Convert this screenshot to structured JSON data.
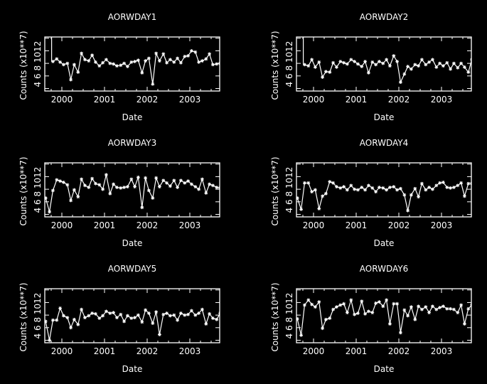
{
  "colors": {
    "background": "#000000",
    "foreground": "#ffffff"
  },
  "chart_data": [
    {
      "type": "line",
      "title": "AORWDAY1",
      "xlabel": "Date",
      "ylabel": "Counts (x10**7)",
      "xlim": [
        1999.6,
        2003.7
      ],
      "ylim": [
        3.6,
        12.2
      ],
      "xticks": [
        2000,
        2001,
        2002,
        2003
      ],
      "xtick_labels": [
        "2000",
        "2001",
        "2002",
        "2003"
      ],
      "yticks": [
        4,
        6,
        8,
        10,
        12
      ],
      "ytick_labels": [
        "4",
        "6",
        "8",
        "10",
        "12"
      ],
      "ytick_label_text": "4 6 8 1012",
      "grid": false,
      "series": [
        {
          "x": [
            1999.79,
            1999.88,
            1999.96,
            2000.04,
            2000.13,
            2000.21,
            2000.29,
            2000.38,
            2000.46,
            2000.54,
            2000.63,
            2000.71,
            2000.79,
            2000.88,
            2000.96,
            2001.04,
            2001.13,
            2001.21,
            2001.29,
            2001.38,
            2001.46,
            2001.54,
            2001.63,
            2001.71,
            2001.79,
            2001.88,
            2001.96,
            2002.04,
            2002.13,
            2002.21,
            2002.29,
            2002.38,
            2002.46,
            2002.54,
            2002.63,
            2002.71,
            2002.79,
            2002.88,
            2002.96,
            2003.04,
            2003.13,
            2003.21,
            2003.29,
            2003.38,
            2003.46,
            2003.54,
            2003.63,
            2003.71
          ],
          "y": [
            8.3,
            8.7,
            8.2,
            7.8,
            8.0,
            5.4,
            7.8,
            6.6,
            9.6,
            8.6,
            8.4,
            9.3,
            8.2,
            7.6,
            8.1,
            8.6,
            8.0,
            7.9,
            7.6,
            7.7,
            8.0,
            7.5,
            8.2,
            8.3,
            8.5,
            6.5,
            8.4,
            8.8,
            4.7,
            9.6,
            8.4,
            9.5,
            8.1,
            8.6,
            8.2,
            8.8,
            8.1,
            9.1,
            9.2,
            10.0,
            9.8,
            8.2,
            8.4,
            8.7,
            9.5,
            7.8,
            7.9,
            8.0
          ]
        }
      ],
      "spikes": [
        {
          "x": 1999.76,
          "y_from": 8.3,
          "y_to": 12.2
        }
      ]
    },
    {
      "type": "line",
      "title": "AORWDAY2",
      "xlabel": "Date",
      "ylabel": "Counts (x10**7)",
      "xlim": [
        1999.6,
        2003.7
      ],
      "ylim": [
        3.6,
        12.2
      ],
      "xticks": [
        2000,
        2001,
        2002,
        2003
      ],
      "xtick_labels": [
        "2000",
        "2001",
        "2002",
        "2003"
      ],
      "yticks": [
        4,
        6,
        8,
        10,
        12
      ],
      "ytick_labels": [
        "4",
        "6",
        "8",
        "10",
        "12"
      ],
      "ytick_label_text": "4 6 8 1012",
      "grid": false,
      "series": [
        {
          "x": [
            1999.79,
            1999.88,
            1999.96,
            2000.04,
            2000.13,
            2000.21,
            2000.29,
            2000.38,
            2000.46,
            2000.54,
            2000.63,
            2000.71,
            2000.79,
            2000.88,
            2000.96,
            2001.04,
            2001.13,
            2001.21,
            2001.29,
            2001.38,
            2001.46,
            2001.54,
            2001.63,
            2001.71,
            2001.79,
            2001.88,
            2001.96,
            2002.04,
            2002.13,
            2002.21,
            2002.29,
            2002.38,
            2002.46,
            2002.54,
            2002.63,
            2002.71,
            2002.79,
            2002.88,
            2002.96,
            2003.04,
            2003.13,
            2003.21,
            2003.29,
            2003.38,
            2003.46,
            2003.54,
            2003.63,
            2003.71
          ],
          "y": [
            7.8,
            7.6,
            8.6,
            7.4,
            8.2,
            5.8,
            6.7,
            6.6,
            8.1,
            7.4,
            8.3,
            8.1,
            7.9,
            8.6,
            8.3,
            7.9,
            7.5,
            8.3,
            6.5,
            8.2,
            7.8,
            8.3,
            8.0,
            8.6,
            7.6,
            9.2,
            8.3,
            5.0,
            6.3,
            7.5,
            7.1,
            7.8,
            7.6,
            8.6,
            7.8,
            8.2,
            8.6,
            7.4,
            8.0,
            7.6,
            8.1,
            7.1,
            8.0,
            7.3,
            8.0,
            7.4,
            6.6,
            8.6
          ]
        }
      ],
      "spikes": [
        {
          "x": 1999.76,
          "y_from": 7.8,
          "y_to": 12.2
        }
      ]
    },
    {
      "type": "line",
      "title": "AORWDAY3",
      "xlabel": "Date",
      "ylabel": "Counts (x10**7)",
      "xlim": [
        1999.6,
        2003.7
      ],
      "ylim": [
        3.6,
        12.2
      ],
      "xticks": [
        2000,
        2001,
        2002,
        2003
      ],
      "xtick_labels": [
        "2000",
        "2001",
        "2002",
        "2003"
      ],
      "yticks": [
        4,
        6,
        8,
        10,
        12
      ],
      "ytick_labels": [
        "4",
        "6",
        "8",
        "10",
        "12"
      ],
      "ytick_label_text": "4 6 8 1012",
      "grid": false,
      "series": [
        {
          "x": [
            1999.62,
            1999.71,
            1999.79,
            1999.88,
            1999.96,
            2000.04,
            2000.13,
            2000.21,
            2000.29,
            2000.38,
            2000.46,
            2000.54,
            2000.63,
            2000.71,
            2000.79,
            2000.88,
            2000.96,
            2001.04,
            2001.13,
            2001.21,
            2001.29,
            2001.38,
            2001.46,
            2001.54,
            2001.63,
            2001.71,
            2001.79,
            2001.88,
            2001.96,
            2002.04,
            2002.13,
            2002.21,
            2002.29,
            2002.38,
            2002.46,
            2002.54,
            2002.63,
            2002.71,
            2002.79,
            2002.88,
            2002.96,
            2003.04,
            2003.13,
            2003.21,
            2003.29,
            2003.38,
            2003.46,
            2003.54,
            2003.63,
            2003.71
          ],
          "y": [
            6.6,
            4.4,
            7.8,
            9.5,
            9.3,
            9.1,
            8.7,
            6.2,
            7.9,
            6.8,
            9.6,
            8.6,
            8.3,
            9.7,
            8.9,
            8.7,
            8.0,
            10.3,
            7.3,
            8.8,
            8.3,
            8.2,
            8.3,
            8.4,
            9.6,
            8.4,
            9.9,
            5.1,
            9.8,
            7.8,
            6.6,
            9.8,
            8.4,
            9.4,
            9.0,
            8.5,
            9.4,
            8.3,
            9.4,
            9.0,
            9.3,
            8.8,
            8.4,
            8.0,
            9.6,
            7.4,
            8.8,
            8.6,
            8.3,
            8.2
          ]
        }
      ],
      "spikes": []
    },
    {
      "type": "line",
      "title": "AORWDAY4",
      "xlabel": "Date",
      "ylabel": "Counts (x10**7)",
      "xlim": [
        1999.6,
        2003.7
      ],
      "ylim": [
        3.6,
        12.2
      ],
      "xticks": [
        2000,
        2001,
        2002,
        2003
      ],
      "xtick_labels": [
        "2000",
        "2001",
        "2002",
        "2003"
      ],
      "yticks": [
        4,
        6,
        8,
        10,
        12
      ],
      "ytick_labels": [
        "4",
        "6",
        "8",
        "10",
        "12"
      ],
      "ytick_label_text": "4 6 8 1012",
      "grid": false,
      "series": [
        {
          "x": [
            1999.62,
            1999.71,
            1999.79,
            1999.88,
            1999.96,
            2000.04,
            2000.13,
            2000.21,
            2000.29,
            2000.38,
            2000.46,
            2000.54,
            2000.63,
            2000.71,
            2000.79,
            2000.88,
            2000.96,
            2001.04,
            2001.13,
            2001.21,
            2001.29,
            2001.38,
            2001.46,
            2001.54,
            2001.63,
            2001.71,
            2001.79,
            2001.88,
            2001.96,
            2002.04,
            2002.13,
            2002.21,
            2002.29,
            2002.38,
            2002.46,
            2002.54,
            2002.63,
            2002.71,
            2002.79,
            2002.88,
            2002.96,
            2003.04,
            2003.13,
            2003.21,
            2003.29,
            2003.38,
            2003.46,
            2003.54,
            2003.63,
            2003.71
          ],
          "y": [
            6.6,
            4.8,
            9.0,
            9.0,
            7.6,
            7.9,
            4.9,
            6.9,
            7.3,
            9.2,
            9.0,
            8.4,
            8.2,
            8.4,
            7.9,
            8.6,
            8.0,
            7.9,
            8.3,
            7.9,
            8.6,
            8.2,
            7.6,
            8.3,
            8.2,
            7.9,
            8.3,
            8.4,
            7.9,
            8.1,
            7.1,
            4.6,
            7.1,
            8.1,
            6.8,
            8.9,
            7.9,
            8.3,
            8.0,
            8.6,
            9.0,
            9.1,
            8.3,
            8.2,
            8.3,
            8.6,
            9.0,
            6.9,
            8.9,
            8.9
          ]
        }
      ],
      "spikes": []
    },
    {
      "type": "line",
      "title": "AORWDAY5",
      "xlabel": "Date",
      "ylabel": "Counts (x10**7)",
      "xlim": [
        1999.6,
        2003.7
      ],
      "ylim": [
        3.6,
        12.2
      ],
      "xticks": [
        2000,
        2001,
        2002,
        2003
      ],
      "xtick_labels": [
        "2000",
        "2001",
        "2002",
        "2003"
      ],
      "yticks": [
        4,
        6,
        8,
        10,
        12
      ],
      "ytick_labels": [
        "4",
        "6",
        "8",
        "10",
        "12"
      ],
      "ytick_label_text": "4 6 8 1012",
      "grid": false,
      "series": [
        {
          "x": [
            1999.62,
            1999.71,
            1999.79,
            1999.88,
            1999.96,
            2000.04,
            2000.13,
            2000.21,
            2000.29,
            2000.38,
            2000.46,
            2000.54,
            2000.63,
            2000.71,
            2000.79,
            2000.88,
            2000.96,
            2001.04,
            2001.13,
            2001.21,
            2001.29,
            2001.38,
            2001.46,
            2001.54,
            2001.63,
            2001.71,
            2001.79,
            2001.88,
            2001.96,
            2002.04,
            2002.13,
            2002.21,
            2002.29,
            2002.38,
            2002.46,
            2002.54,
            2002.63,
            2002.71,
            2002.79,
            2002.88,
            2002.96,
            2003.04,
            2003.13,
            2003.21,
            2003.29,
            2003.38,
            2003.46,
            2003.54,
            2003.63,
            2003.71
          ],
          "y": [
            7.0,
            4.0,
            7.2,
            7.2,
            9.1,
            7.9,
            7.6,
            6.0,
            7.3,
            6.5,
            8.9,
            7.6,
            7.9,
            8.3,
            8.2,
            7.5,
            7.9,
            8.6,
            8.3,
            8.4,
            7.6,
            8.1,
            7.0,
            7.9,
            7.5,
            7.6,
            8.0,
            6.9,
            8.8,
            8.3,
            6.7,
            8.5,
            4.9,
            8.1,
            8.3,
            7.9,
            8.0,
            7.2,
            8.3,
            8.0,
            8.1,
            8.7,
            8.0,
            8.3,
            8.9,
            6.6,
            8.2,
            7.5,
            7.3,
            8.3
          ]
        }
      ],
      "spikes": []
    },
    {
      "type": "line",
      "title": "AORWDAY6",
      "xlabel": "Date",
      "ylabel": "Counts (x10**7)",
      "xlim": [
        1999.6,
        2003.7
      ],
      "ylim": [
        3.6,
        12.2
      ],
      "xticks": [
        2000,
        2001,
        2002,
        2003
      ],
      "xtick_labels": [
        "2000",
        "2001",
        "2002",
        "2003"
      ],
      "yticks": [
        4,
        6,
        8,
        10,
        12
      ],
      "ytick_labels": [
        "4",
        "6",
        "8",
        "10",
        "12"
      ],
      "ytick_label_text": "4 6 8 1012",
      "grid": false,
      "series": [
        {
          "x": [
            1999.62,
            1999.71,
            1999.79,
            1999.88,
            1999.96,
            2000.04,
            2000.13,
            2000.21,
            2000.29,
            2000.38,
            2000.46,
            2000.54,
            2000.63,
            2000.71,
            2000.79,
            2000.88,
            2000.96,
            2001.04,
            2001.13,
            2001.21,
            2001.29,
            2001.38,
            2001.46,
            2001.54,
            2001.63,
            2001.71,
            2001.79,
            2001.88,
            2001.96,
            2002.04,
            2002.13,
            2002.21,
            2002.29,
            2002.38,
            2002.46,
            2002.54,
            2002.63,
            2002.71,
            2002.79,
            2002.88,
            2002.96,
            2003.04,
            2003.13,
            2003.21,
            2003.29,
            2003.38,
            2003.46,
            2003.54,
            2003.63,
            2003.71
          ],
          "y": [
            7.4,
            4.8,
            9.6,
            10.4,
            9.7,
            9.3,
            10.1,
            5.9,
            7.3,
            7.5,
            8.9,
            9.3,
            9.6,
            9.8,
            8.4,
            10.4,
            8.1,
            8.3,
            10.2,
            8.2,
            8.6,
            8.4,
            9.9,
            10.1,
            9.4,
            10.4,
            6.6,
            9.8,
            9.8,
            5.2,
            8.8,
            7.9,
            9.3,
            7.3,
            9.4,
            8.9,
            9.3,
            8.4,
            9.4,
            8.9,
            9.2,
            9.4,
            9.0,
            9.0,
            8.9,
            8.4,
            9.6,
            6.6,
            9.0,
            9.6
          ]
        }
      ],
      "spikes": []
    }
  ]
}
